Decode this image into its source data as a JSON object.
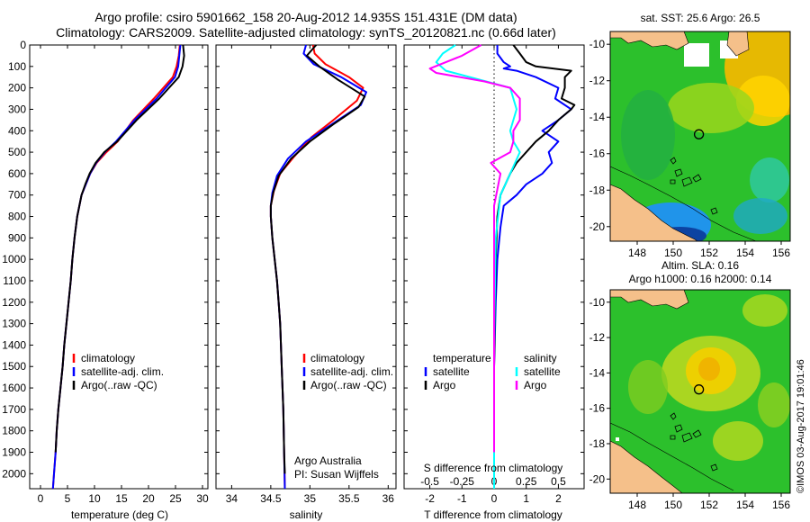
{
  "header": {
    "title_line1": "Argo profile: csiro 5901662_158 20-Aug-2012 14.935S 151.431E (DM data)",
    "title_line2": "Climatology: CARS2009. Satellite-adjusted climatology: synTS_20120821.nc (0.66d later)"
  },
  "colors": {
    "climatology": "#ff0000",
    "satellite": "#0000ff",
    "argo": "#000000",
    "salinity_satellite": "#00ffff",
    "salinity_argo": "#ff00ff",
    "land": "#f5c08a",
    "ocean_green": "#22b822",
    "ocean_yellow": "#f0e000",
    "ocean_blue": "#1f8fff"
  },
  "chart_data": [
    {
      "type": "line",
      "title": "",
      "xlabel": "temperature (deg C)",
      "ylabel": "",
      "xlim": [
        -2,
        31
      ],
      "ylim": [
        2070,
        0
      ],
      "xticks": [
        0,
        5,
        10,
        15,
        20,
        25,
        30
      ],
      "xtick_labels": [
        "0",
        "5",
        "10",
        "15",
        "20",
        "25",
        "30"
      ],
      "yticks": [
        0,
        100,
        200,
        300,
        400,
        500,
        600,
        700,
        800,
        900,
        1000,
        1100,
        1200,
        1300,
        1400,
        1500,
        1600,
        1700,
        1800,
        1900,
        2000
      ],
      "ytick_labels": [
        "0",
        "100",
        "200",
        "300",
        "400",
        "500",
        "600",
        "700",
        "800",
        "900",
        "1000",
        "1100",
        "1200",
        "1300",
        "1400",
        "1500",
        "1600",
        "1700",
        "1800",
        "1900",
        "2000"
      ],
      "legend": [
        "climatology",
        "satellite-adj. clim.",
        "Argo(..raw -QC)"
      ],
      "legend_position": "lower-center",
      "series": [
        {
          "name": "climatology",
          "color_key": "climatology",
          "x": [
            25.8,
            25.6,
            25.2,
            24.5,
            21.0,
            17.2,
            14.3,
            12.2,
            10.4,
            9.2,
            8.4,
            7.6,
            6.8,
            6.3,
            5.9,
            5.6,
            5.2,
            4.8,
            4.4,
            4.1,
            3.7,
            3.3,
            3.0,
            2.8,
            2.5,
            2.3
          ],
          "y": [
            0,
            50,
            100,
            150,
            250,
            350,
            450,
            500,
            550,
            600,
            650,
            700,
            800,
            900,
            1000,
            1100,
            1200,
            1300,
            1400,
            1500,
            1600,
            1700,
            1800,
            1900,
            2000,
            2070
          ]
        },
        {
          "name": "satellite-adj. clim.",
          "color_key": "satellite",
          "x": [
            25.9,
            25.7,
            25.5,
            24.9,
            21.5,
            17.4,
            14.0,
            11.9,
            10.3,
            9.2,
            8.4,
            7.6,
            6.8,
            6.3,
            5.9,
            5.6,
            5.2,
            4.8,
            4.4,
            4.1,
            3.7,
            3.3,
            3.0,
            2.8,
            2.5,
            2.3
          ],
          "y": [
            0,
            50,
            100,
            150,
            250,
            350,
            450,
            500,
            550,
            600,
            650,
            700,
            800,
            900,
            1000,
            1100,
            1200,
            1300,
            1400,
            1500,
            1600,
            1700,
            1800,
            1900,
            2000,
            2070
          ]
        },
        {
          "name": "Argo(..raw -QC)",
          "color_key": "argo",
          "x": [
            26.4,
            26.6,
            26.3,
            25.6,
            22.0,
            17.8,
            14.2,
            11.8,
            10.2,
            9.1,
            8.3,
            7.6,
            6.8,
            6.3,
            5.9,
            5.6,
            5.2,
            4.8,
            4.4,
            4.1,
            3.7,
            3.3,
            3.0,
            2.8
          ],
          "y": [
            0,
            50,
            100,
            150,
            250,
            350,
            450,
            500,
            550,
            600,
            650,
            700,
            800,
            900,
            1000,
            1100,
            1200,
            1300,
            1400,
            1500,
            1600,
            1700,
            1800,
            1900
          ]
        }
      ]
    },
    {
      "type": "line",
      "title": "",
      "xlabel": "salinity",
      "ylabel": "",
      "xlim": [
        33.8,
        36.1
      ],
      "ylim": [
        2070,
        0
      ],
      "xticks": [
        34,
        34.5,
        35,
        35.5,
        36
      ],
      "xtick_labels": [
        "34",
        "34.5",
        "35",
        "35.5",
        "36"
      ],
      "legend": [
        "climatology",
        "satellite-adj. clim.",
        "Argo(..raw -QC)"
      ],
      "legend_position": "lower-center",
      "annotation_lines": [
        "Argo Australia",
        "PI: Susan Wijffels"
      ],
      "series": [
        {
          "name": "climatology",
          "color_key": "climatology",
          "x": [
            35.04,
            35.06,
            35.2,
            35.5,
            35.68,
            35.6,
            35.3,
            35.02,
            34.8,
            34.62,
            34.54,
            34.5,
            34.5,
            34.52,
            34.55,
            34.58,
            34.6,
            34.62,
            34.64,
            34.66,
            34.67,
            34.68
          ],
          "y": [
            0,
            40,
            90,
            150,
            200,
            260,
            350,
            430,
            520,
            600,
            680,
            750,
            800,
            900,
            1000,
            1100,
            1200,
            1300,
            1500,
            1700,
            1900,
            2070
          ]
        },
        {
          "name": "satellite-adj. clim.",
          "color_key": "satellite",
          "x": [
            34.95,
            34.92,
            35.05,
            35.4,
            35.72,
            35.65,
            35.28,
            34.95,
            34.72,
            34.58,
            34.52,
            34.5,
            34.5,
            34.52,
            34.55,
            34.58,
            34.6,
            34.62,
            34.64,
            34.66,
            34.67,
            34.68
          ],
          "y": [
            0,
            40,
            90,
            150,
            220,
            280,
            370,
            450,
            530,
            610,
            690,
            750,
            800,
            900,
            1000,
            1100,
            1200,
            1300,
            1500,
            1700,
            1900,
            2070
          ]
        },
        {
          "name": "Argo(..raw -QC)",
          "color_key": "argo",
          "x": [
            35.08,
            34.96,
            35.12,
            35.35,
            35.7,
            35.62,
            35.3,
            35.0,
            34.76,
            34.6,
            34.53,
            34.5,
            34.5,
            34.52,
            34.55,
            34.58,
            34.6,
            34.62,
            34.64,
            34.66,
            34.67,
            34.68
          ],
          "y": [
            0,
            50,
            100,
            160,
            240,
            290,
            370,
            450,
            530,
            610,
            690,
            750,
            800,
            900,
            1000,
            1100,
            1200,
            1300,
            1500,
            1700,
            1900,
            2000
          ]
        }
      ]
    },
    {
      "type": "line",
      "title": "",
      "xlabel": "T difference from climatology",
      "xlabel_top": "S difference from climatology",
      "xlim": [
        -2.8,
        2.8
      ],
      "ylim": [
        2070,
        0
      ],
      "xticks": [
        -2,
        -1,
        0,
        1,
        2
      ],
      "xtick_labels": [
        "-2",
        "-1",
        "0",
        "1",
        "2"
      ],
      "sticks": [
        -0.5,
        -0.25,
        0,
        0.25,
        0.5
      ],
      "stick_labels": [
        "-0.5",
        "-0.25",
        "0",
        "0.25",
        "0.5"
      ],
      "s_per_t": 0.25,
      "legend_temperature_heading": "temperature",
      "legend_salinity_heading": "salinity",
      "legend": [
        "satellite",
        "Argo",
        "satellite",
        "Argo"
      ],
      "legend_position": "lower-center",
      "series": [
        {
          "name": "T satellite",
          "color_key": "satellite",
          "x": [
            0.1,
            0.1,
            0.3,
            0.5,
            0.3,
            0.7,
            1.3,
            2.0,
            1.9,
            2.4,
            2.0,
            1.5,
            2.0,
            1.7,
            1.8,
            1.5,
            1.0,
            0.7,
            0.3,
            0.2,
            0.1,
            0.05,
            0.0,
            0.0,
            0.0
          ],
          "y": [
            0,
            40,
            80,
            100,
            110,
            120,
            150,
            200,
            250,
            300,
            350,
            400,
            450,
            500,
            550,
            600,
            650,
            700,
            750,
            850,
            1000,
            1200,
            1500,
            1800,
            2070
          ]
        },
        {
          "name": "T Argo",
          "color_key": "argo",
          "x": [
            0.6,
            0.8,
            1.0,
            1.3,
            2.4,
            2.2,
            2.2,
            2.1,
            2.5,
            2.4,
            2.0,
            1.7,
            1.3,
            1.0,
            0.7,
            0.5,
            0.35,
            0.2,
            0.1,
            0.05,
            0.0,
            0.0
          ],
          "y": [
            0,
            40,
            80,
            100,
            120,
            150,
            200,
            250,
            280,
            300,
            350,
            400,
            450,
            500,
            550,
            600,
            650,
            700,
            800,
            1000,
            1500,
            1900
          ]
        },
        {
          "name": "S satellite",
          "color_key": "salinity_satellite",
          "x": [
            -1.2,
            -1.6,
            -1.8,
            -1.5,
            0.5,
            0.6,
            0.7,
            0.6,
            0.5,
            0.6,
            0.8,
            0.5,
            0.2,
            0.05,
            0.0,
            0.0
          ],
          "y": [
            0,
            40,
            80,
            120,
            200,
            250,
            300,
            350,
            400,
            450,
            500,
            600,
            700,
            900,
            1400,
            2070
          ]
        },
        {
          "name": "S Argo",
          "color_key": "salinity_argo",
          "x": [
            -0.4,
            -1.0,
            -2.0,
            -1.8,
            -0.3,
            0.5,
            0.8,
            0.8,
            0.8,
            0.6,
            0.6,
            0.5,
            -0.1,
            0.2,
            0.0,
            0.0
          ],
          "y": [
            0,
            50,
            110,
            130,
            170,
            200,
            250,
            300,
            350,
            400,
            450,
            500,
            550,
            600,
            750,
            1900
          ]
        }
      ]
    },
    {
      "type": "heatmap",
      "title": "sat. SST: 25.6  Argo: 26.5",
      "xlim": [
        146.5,
        156.5
      ],
      "ylim": [
        -20.8,
        -9.3
      ],
      "xticks": [
        148,
        150,
        152,
        154,
        156
      ],
      "xtick_labels": [
        "148",
        "150",
        "152",
        "154",
        "156"
      ],
      "yticks": [
        -10,
        -12,
        -14,
        -16,
        -18,
        -20
      ],
      "ytick_labels": [
        "-10",
        "-12",
        "-14",
        "-16",
        "-18",
        "-20"
      ],
      "marker_lon": 151.431,
      "marker_lat": -14.935
    },
    {
      "type": "heatmap",
      "title_line1": "Altim. SLA: 0.16",
      "title_line2": "Argo h1000: 0.16  h2000: 0.14",
      "xlim": [
        146.5,
        156.5
      ],
      "ylim": [
        -20.8,
        -9.3
      ],
      "xticks": [
        148,
        150,
        152,
        154,
        156
      ],
      "xtick_labels": [
        "148",
        "150",
        "152",
        "154",
        "156"
      ],
      "yticks": [
        -10,
        -12,
        -14,
        -16,
        -18,
        -20
      ],
      "ytick_labels": [
        "-10",
        "-12",
        "-14",
        "-16",
        "-18",
        "-20"
      ],
      "marker_lon": 151.431,
      "marker_lat": -14.935
    }
  ],
  "footer": {
    "credit": "©IMOS 03-Aug-2017 19:01:46"
  }
}
